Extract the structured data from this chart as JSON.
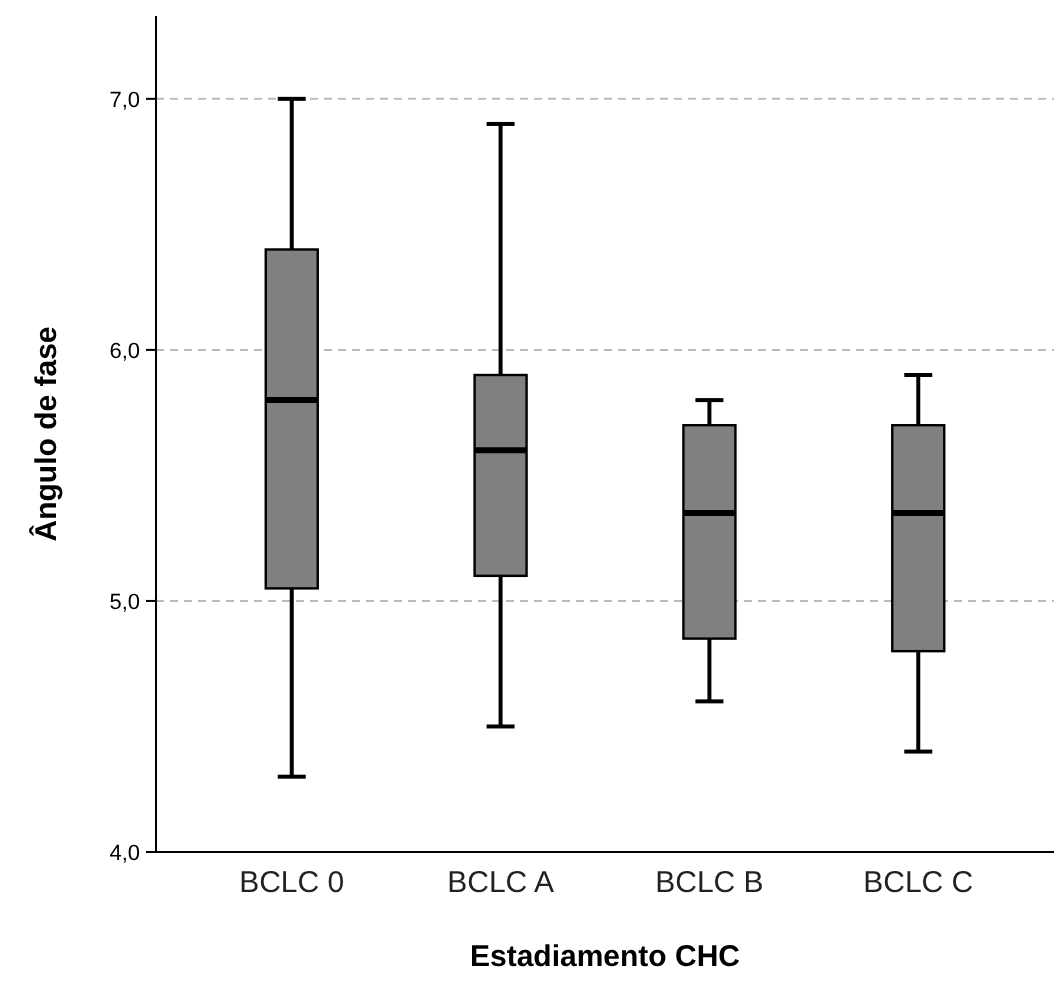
{
  "chart_data": {
    "type": "box",
    "xlabel": "Estadiamento CHC",
    "ylabel": "Ângulo de fase",
    "categories": [
      "BCLC 0",
      "BCLC A",
      "BCLC B",
      "BCLC C"
    ],
    "boxes": [
      {
        "low": 4.3,
        "q1": 5.05,
        "median": 5.8,
        "q3": 6.4,
        "high": 7.0
      },
      {
        "low": 4.5,
        "q1": 5.1,
        "median": 5.6,
        "q3": 5.9,
        "high": 6.9
      },
      {
        "low": 4.6,
        "q1": 4.85,
        "median": 5.35,
        "q3": 5.7,
        "high": 5.8
      },
      {
        "low": 4.4,
        "q1": 4.8,
        "median": 5.35,
        "q3": 5.7,
        "high": 5.9
      }
    ],
    "color": "#808080",
    "ylim": [
      4,
      7.33
    ],
    "yticks": [
      {
        "value": 4,
        "label": "4,0"
      },
      {
        "value": 5,
        "label": "5,0"
      },
      {
        "value": 6,
        "label": "6,0"
      },
      {
        "value": 7,
        "label": "7,0"
      }
    ],
    "grid": "y"
  }
}
